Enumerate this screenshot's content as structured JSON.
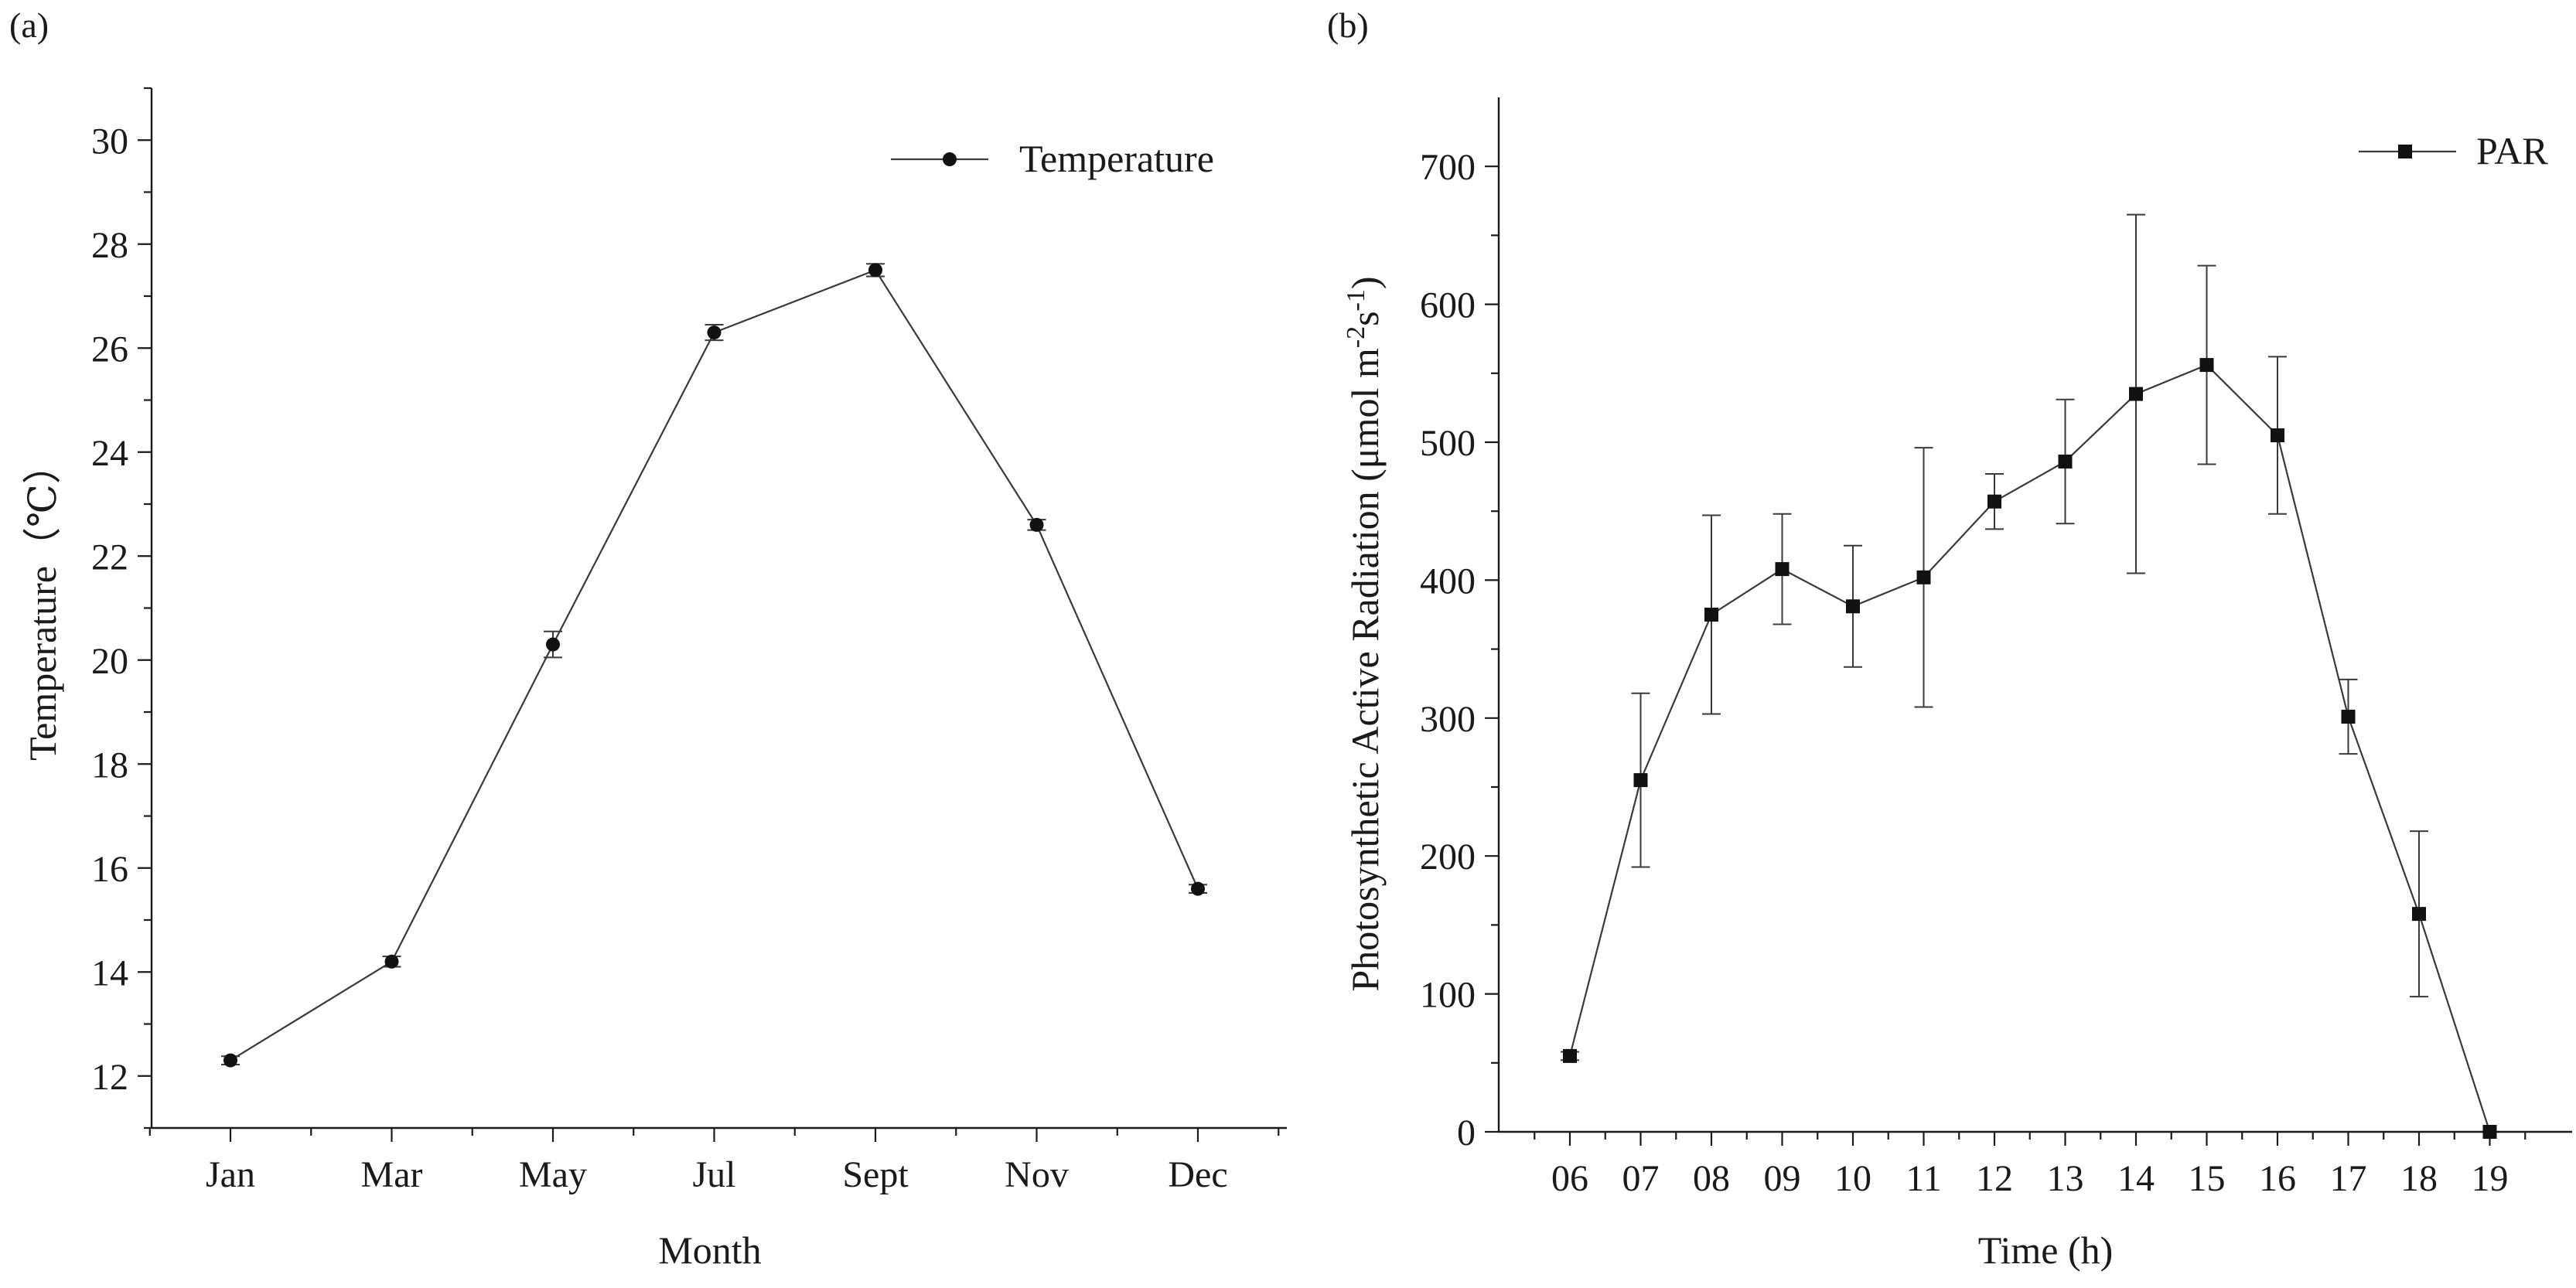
{
  "chart_data": [
    {
      "panel_label": "(a)",
      "type": "line",
      "title": "",
      "xlabel": "Month",
      "ylabel": "Temperature（℃）",
      "categories": [
        "Jan",
        "Mar",
        "May",
        "Jul",
        "Sept",
        "Nov",
        "Dec"
      ],
      "series": [
        {
          "name": "Temperature",
          "marker": "circle",
          "values": [
            12.3,
            14.2,
            20.3,
            26.3,
            27.5,
            22.6,
            15.6
          ],
          "errors": [
            0.08,
            0.1,
            0.25,
            0.15,
            0.12,
            0.1,
            0.08
          ]
        }
      ],
      "ylim": [
        11,
        31
      ],
      "yticks": [
        12,
        14,
        16,
        18,
        20,
        22,
        24,
        26,
        28,
        30
      ],
      "legend": "top-right",
      "grid": false
    },
    {
      "panel_label": "(b)",
      "type": "line",
      "title": "",
      "xlabel": "Time (h)",
      "ylabel": "Photosynthetic Active Radiation (μmol m-2s-1)",
      "ylabel_parts": {
        "main": "Photosynthetic Active Radiation (μmol m",
        "sup1": "-2",
        "mid": "s",
        "sup2": "-1",
        "end": ")"
      },
      "categories": [
        "06",
        "07",
        "08",
        "09",
        "10",
        "11",
        "12",
        "13",
        "14",
        "15",
        "16",
        "17",
        "18",
        "19"
      ],
      "series": [
        {
          "name": "PAR",
          "marker": "square",
          "values": [
            55,
            255,
            375,
            408,
            381,
            402,
            457,
            486,
            535,
            556,
            505,
            301,
            158,
            0
          ],
          "errors": [
            3,
            63,
            72,
            40,
            44,
            94,
            20,
            45,
            130,
            72,
            57,
            27,
            60,
            0
          ]
        }
      ],
      "ylim": [
        0,
        750
      ],
      "yticks": [
        0,
        100,
        200,
        300,
        400,
        500,
        600,
        700
      ],
      "legend": "top-right",
      "grid": false
    }
  ]
}
